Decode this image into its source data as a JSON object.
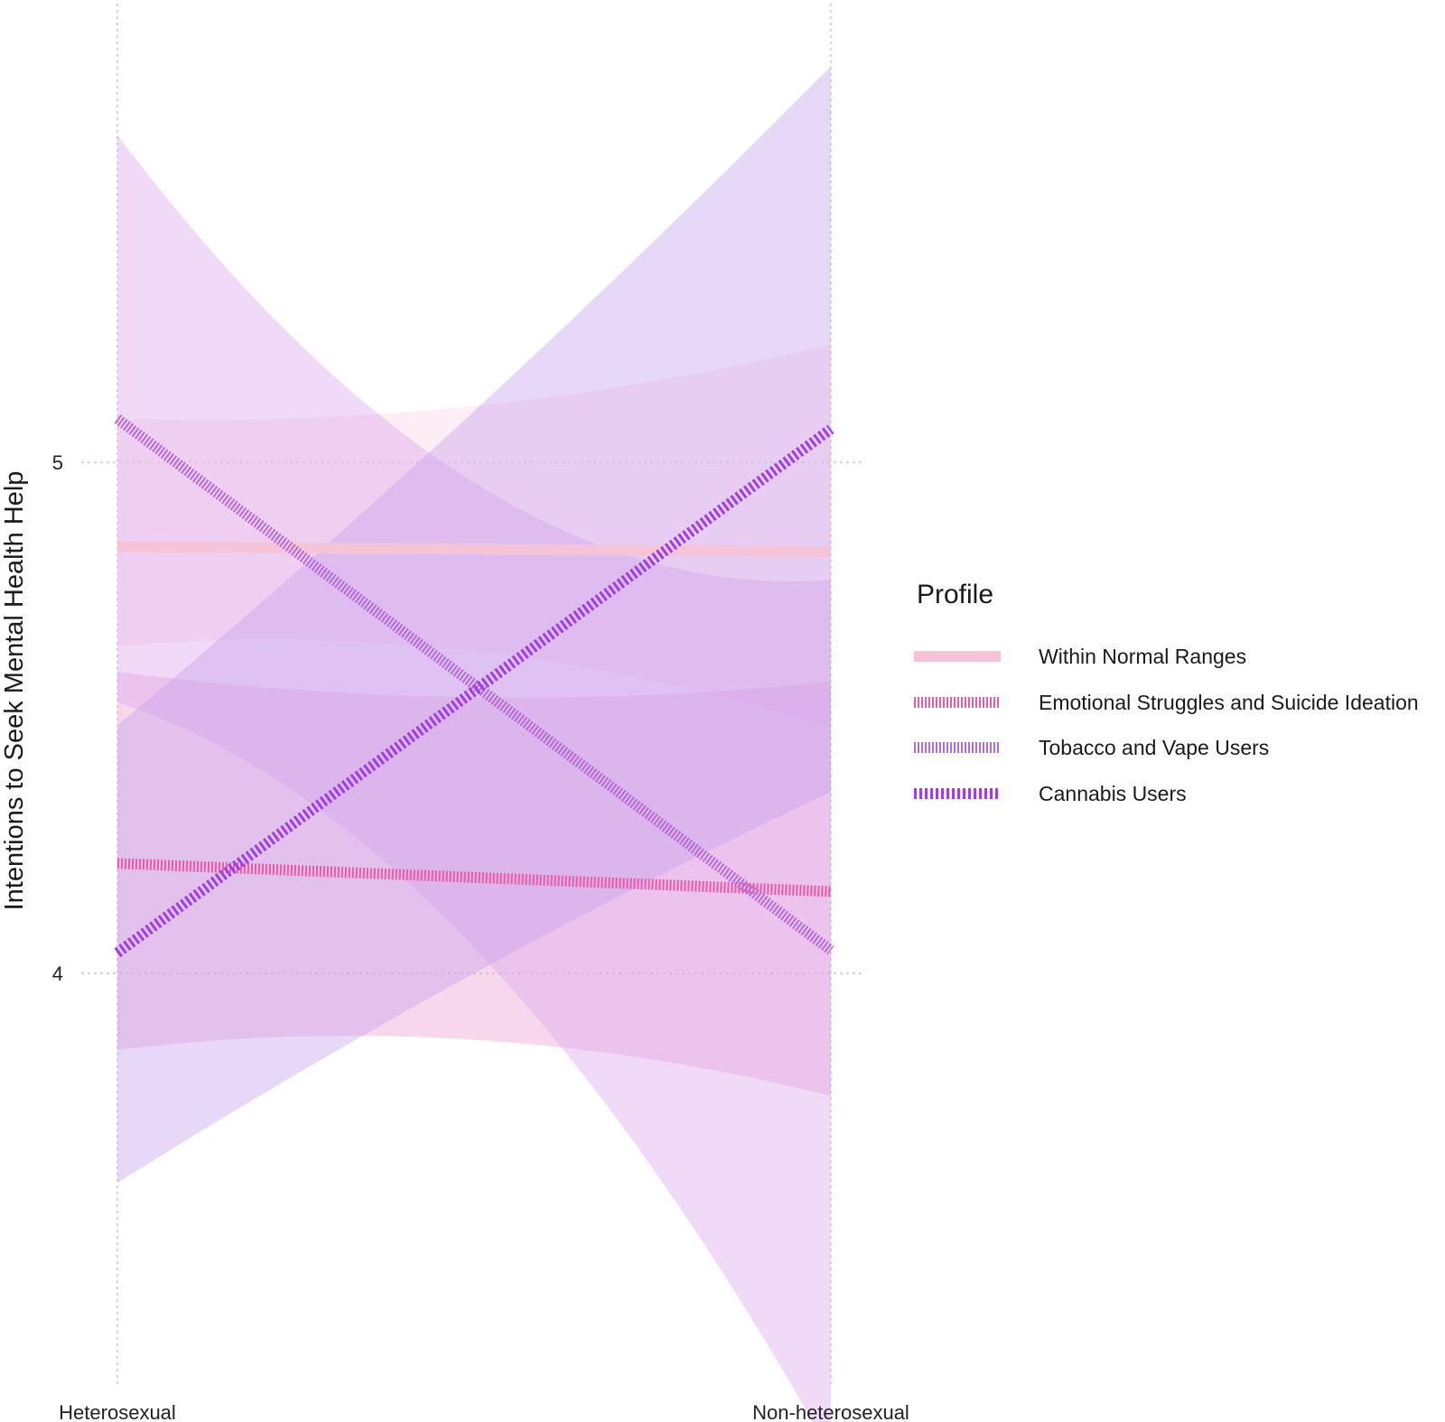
{
  "chart_data": {
    "type": "line",
    "title": "",
    "xlabel": "",
    "ylabel": "Intentions to Seek Mental Health Help",
    "categories": [
      "Heterosexual",
      "Non-heterosexual"
    ],
    "yticks": [
      4,
      5
    ],
    "ylim": [
      3.2,
      5.9
    ],
    "grid": true,
    "legend": {
      "title": "Profile",
      "position": "right"
    },
    "series": [
      {
        "name": "Within Normal Ranges",
        "values": [
          4.835,
          4.825
        ],
        "ci_lower": [
          4.64,
          4.48
        ],
        "ci_upper": [
          5.085,
          5.23
        ],
        "ci_mid_lower": 4.63,
        "ci_mid_upper": 5.11,
        "line_color": "#f5c4d8",
        "band_color": "#fbd4e4",
        "line_style": "solid"
      },
      {
        "name": "Emotional Struggles and Suicide Ideation",
        "values": [
          4.215,
          4.16
        ],
        "ci_lower": [
          3.85,
          3.76
        ],
        "ci_upper": [
          4.59,
          4.57
        ],
        "ci_mid_lower": 3.87,
        "ci_mid_upper": 4.54,
        "line_color": "#e85aa8",
        "band_color": "#e99fd2",
        "line_style": "dashed"
      },
      {
        "name": "Tobacco and Vape Users",
        "values": [
          5.085,
          4.045
        ],
        "ci_lower": [
          4.53,
          3.06
        ],
        "ci_upper": [
          5.64,
          4.77
        ],
        "ci_mid_lower": 4.05,
        "ci_mid_upper": 4.96,
        "line_color": "#b56ad6",
        "band_color": "#dca8ec",
        "line_style": "dashed"
      },
      {
        "name": "Cannabis Users",
        "values": [
          4.04,
          5.065
        ],
        "ci_lower": [
          3.59,
          4.355
        ],
        "ci_upper": [
          4.485,
          5.775
        ],
        "ci_mid_lower": 4.0,
        "ci_mid_upper": 5.1,
        "line_color": "#9e3fe0",
        "band_color": "#c9a2ee",
        "line_style": "dotted"
      }
    ]
  }
}
